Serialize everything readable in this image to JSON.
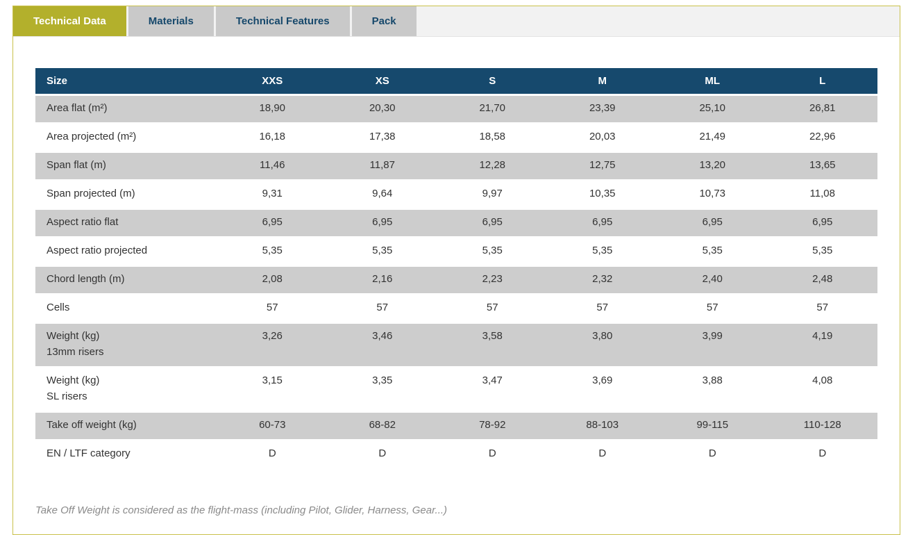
{
  "tabs": [
    {
      "label": "Technical Data",
      "active": true
    },
    {
      "label": "Materials",
      "active": false
    },
    {
      "label": "Technical Features",
      "active": false
    },
    {
      "label": "Pack",
      "active": false
    }
  ],
  "table": {
    "columns": [
      "Size",
      "XXS",
      "XS",
      "S",
      "M",
      "ML",
      "L"
    ],
    "rows": [
      {
        "label": "Area flat (m²)",
        "sublabel": "",
        "values": [
          "18,90",
          "20,30",
          "21,70",
          "23,39",
          "25,10",
          "26,81"
        ]
      },
      {
        "label": "Area projected (m²)",
        "sublabel": "",
        "values": [
          "16,18",
          "17,38",
          "18,58",
          "20,03",
          "21,49",
          "22,96"
        ]
      },
      {
        "label": "Span flat (m)",
        "sublabel": "",
        "values": [
          "11,46",
          "11,87",
          "12,28",
          "12,75",
          "13,20",
          "13,65"
        ]
      },
      {
        "label": "Span projected (m)",
        "sublabel": "",
        "values": [
          "9,31",
          "9,64",
          "9,97",
          "10,35",
          "10,73",
          "11,08"
        ]
      },
      {
        "label": "Aspect ratio flat",
        "sublabel": "",
        "values": [
          "6,95",
          "6,95",
          "6,95",
          "6,95",
          "6,95",
          "6,95"
        ]
      },
      {
        "label": "Aspect ratio projected",
        "sublabel": "",
        "values": [
          "5,35",
          "5,35",
          "5,35",
          "5,35",
          "5,35",
          "5,35"
        ]
      },
      {
        "label": "Chord length (m)",
        "sublabel": "",
        "values": [
          "2,08",
          "2,16",
          "2,23",
          "2,32",
          "2,40",
          "2,48"
        ]
      },
      {
        "label": "Cells",
        "sublabel": "",
        "values": [
          "57",
          "57",
          "57",
          "57",
          "57",
          "57"
        ]
      },
      {
        "label": "Weight (kg)",
        "sublabel": "13mm risers",
        "values": [
          "3,26",
          "3,46",
          "3,58",
          "3,80",
          "3,99",
          "4,19"
        ]
      },
      {
        "label": "Weight (kg)",
        "sublabel": "SL risers",
        "values": [
          "3,15",
          "3,35",
          "3,47",
          "3,69",
          "3,88",
          "4,08"
        ]
      },
      {
        "label": "Take off weight (kg)",
        "sublabel": "",
        "values": [
          "60-73",
          "68-82",
          "78-92",
          "88-103",
          "99-115",
          "110-128"
        ]
      },
      {
        "label": "EN / LTF category",
        "sublabel": "",
        "values": [
          "D",
          "D",
          "D",
          "D",
          "D",
          "D"
        ]
      }
    ]
  },
  "footnote": "Take Off Weight is considered as the flight-mass (including Pilot, Glider, Harness, Gear...)",
  "colors": {
    "active_tab_bg": "#b3b02c",
    "active_tab_text": "#ffffff",
    "inactive_tab_bg": "#c9c9c9",
    "inactive_tab_text": "#16486b",
    "tab_strip_bg": "#f2f2f2",
    "container_border": "#c9c14b",
    "header_bg": "#16496d",
    "header_text": "#ffffff",
    "row_alt_bg": "#cdcdcd",
    "cell_text": "#333333",
    "footnote_text": "#8a8a8a"
  }
}
